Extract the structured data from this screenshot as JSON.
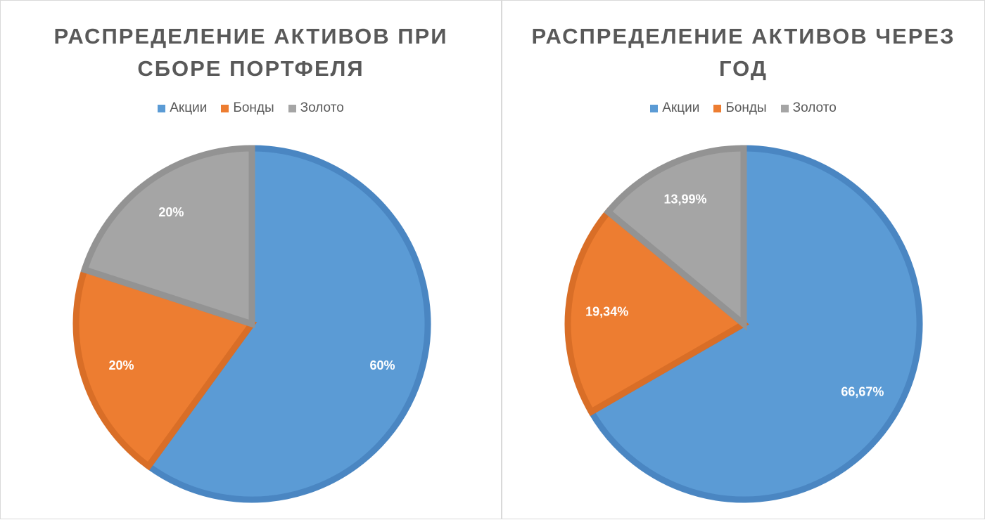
{
  "chart_data": [
    {
      "type": "pie",
      "title": "РАСПРЕДЕЛЕНИЕ АКТИВОВ ПРИ СБОРЕ ПОРТФЕЛЯ",
      "categories": [
        "Акции",
        "Бонды",
        "Золото"
      ],
      "values": [
        60,
        20,
        20
      ],
      "data_labels": [
        "60%",
        "20%",
        "20%"
      ],
      "colors": [
        "#5B9BD5",
        "#ED7D31",
        "#A5A5A5"
      ],
      "border_colors": [
        "#4A86C2",
        "#D96E27",
        "#939393"
      ],
      "legend_position": "top",
      "start_angle": "12 o'clock",
      "direction": "clockwise"
    },
    {
      "type": "pie",
      "title": "РАСПРЕДЕЛЕНИЕ АКТИВОВ ЧЕРЕЗ ГОД",
      "categories": [
        "Акции",
        "Бонды",
        "Золото"
      ],
      "values": [
        66.67,
        19.34,
        13.99
      ],
      "data_labels": [
        "66,67%",
        "19,34%",
        "13,99%"
      ],
      "colors": [
        "#5B9BD5",
        "#ED7D31",
        "#A5A5A5"
      ],
      "border_colors": [
        "#4A86C2",
        "#D96E27",
        "#939393"
      ],
      "legend_position": "top",
      "start_angle": "12 o'clock",
      "direction": "clockwise"
    }
  ]
}
